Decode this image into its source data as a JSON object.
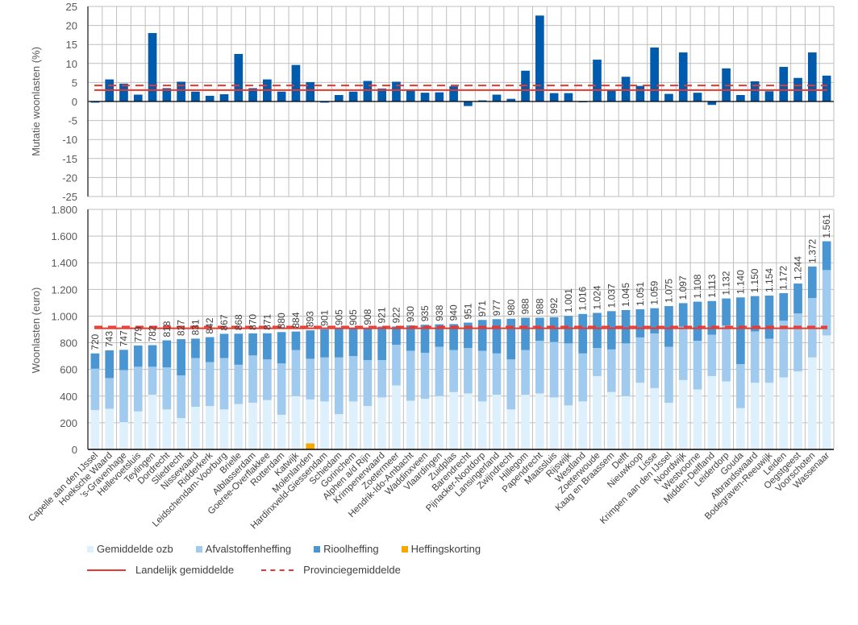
{
  "chart_data": [
    {
      "type": "bar",
      "title": "",
      "ylabel": "Mutatie woonlasten  (%)",
      "xlabel": "",
      "ylim": [
        -25,
        25
      ],
      "yticks": [
        25,
        20,
        15,
        10,
        5,
        0,
        -5,
        -10,
        -15,
        -20,
        -25
      ],
      "grid": true,
      "series": [
        {
          "name": "Mutatie woonlasten",
          "color": "#005BAC",
          "values": [
            -0.3,
            5.8,
            4.7,
            1.8,
            18.0,
            3.5,
            5.2,
            2.6,
            1.5,
            1.9,
            12.5,
            3.5,
            5.8,
            2.6,
            9.6,
            5.1,
            -0.3,
            1.7,
            2.6,
            5.4,
            3.4,
            5.2,
            2.9,
            2.3,
            2.4,
            4.0,
            -1.2,
            0.3,
            1.8,
            0.7,
            8.1,
            22.6,
            2.2,
            2.2,
            0.0,
            11.0,
            3.0,
            6.5,
            4.1,
            14.2,
            2.0,
            12.9,
            2.3,
            -0.9,
            8.7,
            1.7,
            5.3,
            2.7,
            9.1,
            6.2,
            12.9,
            6.8
          ]
        }
      ],
      "reference_lines": [
        {
          "name": "Landelijk gemiddelde",
          "value": 3.0,
          "style": "solid",
          "color": "#E8372C"
        },
        {
          "name": "Provinciegemiddelde",
          "value": 4.2,
          "style": "dashed",
          "color": "#E8372C"
        }
      ]
    },
    {
      "type": "bar",
      "stacked": true,
      "title": "",
      "ylabel": "Woonlasten  (euro)",
      "xlabel": "",
      "ylim": [
        0,
        1800
      ],
      "yticks": [
        "0",
        "200",
        "400",
        "600",
        "800",
        "1.000",
        "1.200",
        "1.400",
        "1.600",
        "1.800"
      ],
      "grid": true,
      "legend_position": "bottom-left",
      "categories": [
        "Capelle aan den IJssel",
        "Hoeksche Waard",
        "'s-Gravenhage",
        "Hellevoetsluis",
        "Teylingen",
        "Dordrecht",
        "Sliedrecht",
        "Nissewaard",
        "Ridderkerk",
        "Leidschendam-Voorburg",
        "Brielle",
        "Alblasserdam",
        "Goeree-Overflakkee",
        "Rotterdam",
        "Katwijk",
        "Molenlanden",
        "Hardinxveld-Giessendam",
        "Schiedam",
        "Gorinchem",
        "Alphen a/d Rijn",
        "Krimpenerwaard",
        "Zoetermeer",
        "Hendrik-Ido-Ambacht",
        "Waddinxveen",
        "Vlaardingen",
        "Zuidplas",
        "Barendrecht",
        "Pijnacker-Nootdorp",
        "Lansingerland",
        "Zwijndrecht",
        "Hillegom",
        "Papendrecht",
        "Maassluis",
        "Rijswijk",
        "Westland",
        "Zoeterwoude",
        "Kaag en Braassem",
        "Delft",
        "Nieuwkoop",
        "Lisse",
        "Krimpen aan den IJssel",
        "Noordwijk",
        "Westvoorne",
        "Midden-Delfland",
        "Leiderdorp",
        "Gouda",
        "Albrandswaard",
        "Bodegraven-Reeuwijk",
        "Leiden",
        "Oegstgeest",
        "Voorschoten",
        "Wassenaar"
      ],
      "totals": [
        720,
        743,
        747,
        779,
        782,
        818,
        827,
        831,
        842,
        867,
        868,
        870,
        871,
        880,
        884,
        893,
        901,
        905,
        905,
        908,
        921,
        922,
        930,
        935,
        938,
        940,
        951,
        971,
        977,
        980,
        988,
        988,
        992,
        1001,
        1016,
        1024,
        1037,
        1045,
        1051,
        1059,
        1075,
        1097,
        1108,
        1113,
        1132,
        1140,
        1150,
        1154,
        1172,
        1244,
        1372,
        1561
      ],
      "total_labels": [
        "720",
        "743",
        "747",
        "779",
        "782",
        "818",
        "827",
        "831",
        "842",
        "867",
        "868",
        "870",
        "871",
        "880",
        "884",
        "893",
        "901",
        "905",
        "905",
        "908",
        "921",
        "922",
        "930",
        "935",
        "938",
        "940",
        "951",
        "971",
        "977",
        "980",
        "988",
        "988",
        "992",
        "1.001",
        "1.016",
        "1.024",
        "1.037",
        "1.045",
        "1.051",
        "1.059",
        "1.075",
        "1.097",
        "1.108",
        "1.113",
        "1.132",
        "1.140",
        "1.150",
        "1.154",
        "1.172",
        "1.244",
        "1.372",
        "1.561"
      ],
      "series": [
        {
          "name": "Gemiddelde ozb",
          "color": "#DDF0FC",
          "values": [
            295,
            305,
            205,
            285,
            410,
            300,
            235,
            320,
            325,
            300,
            340,
            350,
            370,
            260,
            400,
            375,
            360,
            265,
            360,
            325,
            390,
            480,
            365,
            380,
            400,
            430,
            420,
            360,
            410,
            300,
            410,
            420,
            390,
            330,
            360,
            550,
            430,
            400,
            500,
            460,
            350,
            520,
            450,
            550,
            510,
            310,
            500,
            500,
            540,
            585,
            690,
            855
          ]
        },
        {
          "name": "Afvalstoffenheffing",
          "color": "#A0CBEE",
          "values": [
            310,
            230,
            390,
            335,
            210,
            315,
            320,
            365,
            330,
            385,
            295,
            355,
            305,
            385,
            345,
            305,
            330,
            425,
            340,
            345,
            280,
            305,
            375,
            345,
            370,
            315,
            340,
            380,
            310,
            375,
            335,
            395,
            415,
            465,
            360,
            210,
            320,
            395,
            340,
            410,
            420,
            400,
            365,
            310,
            420,
            330,
            385,
            330,
            425,
            435,
            445,
            490
          ]
        },
        {
          "name": "Rioolheffing",
          "color": "#4A96D2",
          "values": [
            115,
            208,
            152,
            159,
            162,
            203,
            272,
            146,
            187,
            182,
            233,
            165,
            196,
            235,
            139,
            213,
            211,
            215,
            205,
            238,
            251,
            137,
            190,
            210,
            168,
            195,
            191,
            231,
            257,
            305,
            243,
            173,
            187,
            206,
            296,
            264,
            287,
            250,
            211,
            189,
            305,
            177,
            293,
            253,
            202,
            500,
            265,
            324,
            207,
            224,
            237,
            216
          ]
        },
        {
          "name": "Heffingskorting",
          "color": "#F5A800",
          "values": [
            0,
            0,
            0,
            0,
            0,
            0,
            0,
            0,
            0,
            0,
            0,
            0,
            0,
            0,
            0,
            45,
            0,
            0,
            0,
            0,
            0,
            0,
            0,
            0,
            0,
            0,
            0,
            0,
            0,
            0,
            0,
            0,
            0,
            0,
            0,
            0,
            0,
            0,
            0,
            0,
            0,
            0,
            0,
            0,
            0,
            0,
            0,
            0,
            0,
            0,
            0,
            0
          ]
        }
      ],
      "reference_lines": [
        {
          "name": "Landelijk gemiddelde",
          "value": 908,
          "style": "solid",
          "color": "#E8372C"
        },
        {
          "name": "Provinciegemiddelde",
          "value": 921,
          "style": "dashed",
          "color": "#E8372C"
        }
      ]
    }
  ],
  "legend": {
    "items": [
      {
        "label": "Gemiddelde ozb",
        "color": "#DDF0FC",
        "kind": "box"
      },
      {
        "label": "Afvalstoffenheffing",
        "color": "#A0CBEE",
        "kind": "box"
      },
      {
        "label": "Rioolheffing",
        "color": "#4A96D2",
        "kind": "box"
      },
      {
        "label": "Heffingskorting",
        "color": "#F5A800",
        "kind": "box"
      }
    ],
    "lines": [
      {
        "label": "Landelijk gemiddelde",
        "color": "#E8372C",
        "kind": "solid"
      },
      {
        "label": "Provinciegemiddelde",
        "color": "#E8372C",
        "kind": "dashed"
      }
    ]
  }
}
